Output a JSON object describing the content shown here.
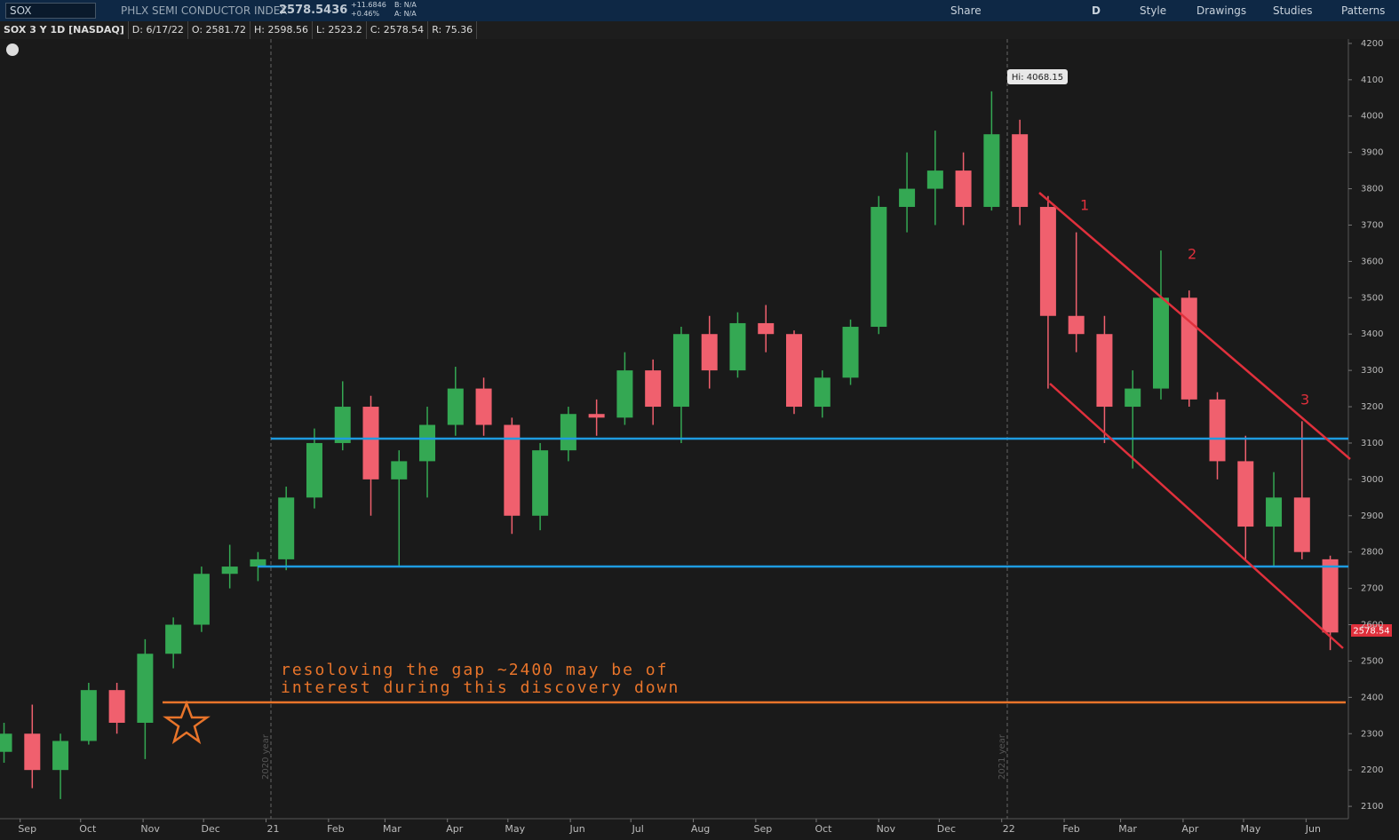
{
  "toolbar": {
    "symbol": "SOX",
    "description": "PHLX SEMI CONDUCTOR INDEX",
    "last": "2578.5436",
    "change": "+11.6846",
    "change_pct": "+0.46%",
    "bid": "B: N/A",
    "ask": "A: N/A",
    "buttons": [
      "Share",
      "D",
      "Style",
      "Drawings",
      "Studies",
      "Patterns"
    ]
  },
  "info_bar": [
    "SOX 3 Y 1D [NASDAQ]",
    "D: 6/17/22",
    "O: 2581.72",
    "H: 2598.56",
    "L: 2523.2",
    "C: 2578.54",
    "R: 75.36"
  ],
  "chart_data": {
    "type": "candlestick",
    "x": [
      0,
      14,
      28,
      42,
      56,
      70,
      84,
      98,
      112,
      126,
      140,
      154,
      168,
      182,
      196,
      210,
      224,
      238,
      252,
      266,
      280,
      294,
      308,
      322,
      336,
      350,
      364,
      378,
      392,
      406,
      420,
      434,
      448,
      462,
      476,
      490,
      504,
      518,
      532,
      546,
      560,
      574,
      588,
      602,
      616,
      630,
      644,
      658
    ],
    "open": [
      2250,
      2300,
      2200,
      2280,
      2420,
      2330,
      2520,
      2600,
      2740,
      2760,
      2780,
      2950,
      3100,
      3200,
      3000,
      3050,
      3150,
      3250,
      3150,
      2900,
      3080,
      3180,
      3170,
      3300,
      3200,
      3400,
      3300,
      3430,
      3400,
      3200,
      3280,
      3420,
      3750,
      3800,
      3850,
      3750,
      3950,
      3750,
      3450,
      3400,
      3200,
      3250,
      3500,
      3220,
      3050,
      2870,
      2950,
      2780
    ],
    "high": [
      2330,
      2380,
      2300,
      2440,
      2440,
      2560,
      2620,
      2760,
      2820,
      2800,
      2980,
      3140,
      3270,
      3230,
      3080,
      3200,
      3310,
      3280,
      3170,
      3100,
      3200,
      3220,
      3350,
      3330,
      3420,
      3450,
      3460,
      3480,
      3410,
      3300,
      3440,
      3780,
      3900,
      3960,
      3900,
      4068.15,
      3990,
      3780,
      3680,
      3450,
      3300,
      3630,
      3520,
      3240,
      3120,
      3020,
      3160,
      2790
    ],
    "low": [
      2220,
      2150,
      2120,
      2270,
      2300,
      2230,
      2480,
      2580,
      2700,
      2720,
      2750,
      2920,
      3080,
      2900,
      2760,
      2950,
      3120,
      3120,
      2850,
      2860,
      3050,
      3120,
      3150,
      3150,
      3100,
      3250,
      3280,
      3350,
      3180,
      3170,
      3260,
      3400,
      3680,
      3700,
      3700,
      3740,
      3700,
      3250,
      3350,
      3100,
      3030,
      3220,
      3200,
      3000,
      2780,
      2760,
      2780,
      2530
    ],
    "close": [
      2300,
      2200,
      2280,
      2420,
      2330,
      2520,
      2600,
      2740,
      2760,
      2780,
      2950,
      3100,
      3200,
      3000,
      3050,
      3150,
      3250,
      3150,
      2900,
      3080,
      3180,
      3170,
      3300,
      3200,
      3400,
      3300,
      3430,
      3400,
      3200,
      3280,
      3420,
      3750,
      3800,
      3850,
      3750,
      3950,
      3750,
      3450,
      3400,
      3200,
      3250,
      3500,
      3220,
      3050,
      2870,
      2950,
      2800,
      2578.54
    ],
    "up_color": "#34a853",
    "down_color": "#f0606e",
    "xlim": [
      -2,
      667
    ],
    "xticks": [
      {
        "value": 8,
        "label": "Sep"
      },
      {
        "value": 38,
        "label": "Oct"
      },
      {
        "value": 69,
        "label": "Nov"
      },
      {
        "value": 99,
        "label": "Dec"
      },
      {
        "value": 130,
        "label": "21"
      },
      {
        "value": 161,
        "label": "Feb"
      },
      {
        "value": 189,
        "label": "Mar"
      },
      {
        "value": 220,
        "label": "Apr"
      },
      {
        "value": 250,
        "label": "May"
      },
      {
        "value": 281,
        "label": "Jun"
      },
      {
        "value": 311,
        "label": "Jul"
      },
      {
        "value": 342,
        "label": "Aug"
      },
      {
        "value": 373,
        "label": "Sep"
      },
      {
        "value": 403,
        "label": "Oct"
      },
      {
        "value": 434,
        "label": "Nov"
      },
      {
        "value": 464,
        "label": "Dec"
      },
      {
        "value": 495,
        "label": "22"
      },
      {
        "value": 526,
        "label": "Feb"
      },
      {
        "value": 554,
        "label": "Mar"
      },
      {
        "value": 585,
        "label": "Apr"
      },
      {
        "value": 615,
        "label": "May"
      },
      {
        "value": 646,
        "label": "Jun"
      }
    ],
    "ylim": [
      2066,
      4212
    ],
    "yticks": [
      2100,
      2200,
      2300,
      2400,
      2500,
      2600,
      2700,
      2800,
      2900,
      3000,
      3100,
      3200,
      3300,
      3400,
      3500,
      3600,
      3700,
      3800,
      3900,
      4000,
      4100,
      4200
    ],
    "hi_label": "Hi: 4068.15",
    "last_price_label": "2578.54",
    "year_labels": [
      "2020 year",
      "2021 year"
    ],
    "annotations": [
      "1",
      "2",
      "3",
      "resoloving the gap ~2400 may be of",
      "interest during this discovery down"
    ]
  }
}
